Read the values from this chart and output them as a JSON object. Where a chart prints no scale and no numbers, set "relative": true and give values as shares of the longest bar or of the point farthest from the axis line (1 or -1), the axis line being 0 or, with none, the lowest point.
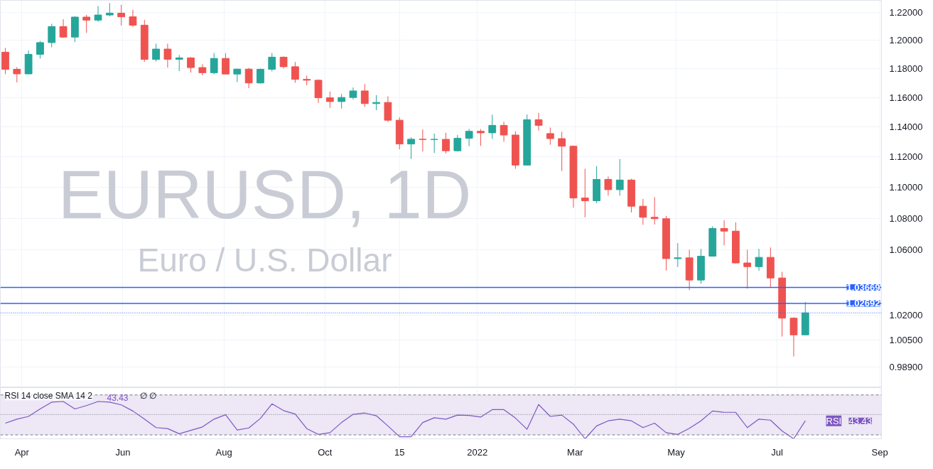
{
  "chart_data": [
    {
      "type": "candlestick",
      "title": "EURUSD, 1D",
      "subtitle": "Euro / U.S. Dollar",
      "x": [
        "2021-03-22",
        "2021-03-29",
        "2021-04-05",
        "2021-04-12",
        "2021-04-19",
        "2021-04-26",
        "2021-05-03",
        "2021-05-10",
        "2021-05-17",
        "2021-05-24",
        "2021-05-31",
        "2021-06-07",
        "2021-06-14",
        "2021-06-21",
        "2021-06-28",
        "2021-07-05",
        "2021-07-12",
        "2021-07-19",
        "2021-07-26",
        "2021-08-02",
        "2021-08-09",
        "2021-08-16",
        "2021-08-23",
        "2021-08-30",
        "2021-09-06",
        "2021-09-13",
        "2021-09-20",
        "2021-09-27",
        "2021-10-04",
        "2021-10-11",
        "2021-10-18",
        "2021-10-25",
        "2021-11-01",
        "2021-11-08",
        "2021-11-15",
        "2021-11-22",
        "2021-11-29",
        "2021-12-06",
        "2021-12-13",
        "2021-12-20",
        "2021-12-27",
        "2022-01-03",
        "2022-01-10",
        "2022-01-17",
        "2022-01-24",
        "2022-01-31",
        "2022-02-07",
        "2022-02-14",
        "2022-02-21",
        "2022-02-28",
        "2022-03-07",
        "2022-03-14",
        "2022-03-21",
        "2022-03-28",
        "2022-04-04",
        "2022-04-11",
        "2022-04-18",
        "2022-04-25",
        "2022-05-02",
        "2022-05-09",
        "2022-05-16",
        "2022-05-23",
        "2022-05-30",
        "2022-06-06",
        "2022-06-13",
        "2022-06-20",
        "2022-06-27",
        "2022-07-04",
        "2022-07-11",
        "2022-07-18"
      ],
      "ohlc": [
        [
          1.1915,
          1.1945,
          1.1762,
          1.1795
        ],
        [
          1.1795,
          1.181,
          1.1704,
          1.1763
        ],
        [
          1.1763,
          1.1927,
          1.176,
          1.19
        ],
        [
          1.19,
          1.1994,
          1.187,
          1.1983
        ],
        [
          1.1983,
          1.2117,
          1.195,
          1.2097
        ],
        [
          1.2097,
          1.215,
          1.2016,
          1.2022
        ],
        [
          1.2022,
          1.2171,
          1.1986,
          1.2165
        ],
        [
          1.2165,
          1.2181,
          1.2052,
          1.2143
        ],
        [
          1.2143,
          1.2245,
          1.2131,
          1.218
        ],
        [
          1.218,
          1.2266,
          1.217,
          1.2193
        ],
        [
          1.2193,
          1.2254,
          1.2104,
          1.2167
        ],
        [
          1.2167,
          1.2218,
          1.2094,
          1.2107
        ],
        [
          1.2107,
          1.2145,
          1.1847,
          1.1864
        ],
        [
          1.1864,
          1.1975,
          1.185,
          1.1937
        ],
        [
          1.1937,
          1.1975,
          1.1807,
          1.1865
        ],
        [
          1.1865,
          1.1895,
          1.1782,
          1.1875
        ],
        [
          1.1875,
          1.188,
          1.1772,
          1.1807
        ],
        [
          1.1807,
          1.183,
          1.1752,
          1.1771
        ],
        [
          1.1771,
          1.1909,
          1.176,
          1.1871
        ],
        [
          1.1871,
          1.1908,
          1.176,
          1.1762
        ],
        [
          1.1762,
          1.18,
          1.1706,
          1.1796
        ],
        [
          1.1796,
          1.1805,
          1.1664,
          1.17
        ],
        [
          1.17,
          1.18,
          1.1696,
          1.1795
        ],
        [
          1.1795,
          1.1909,
          1.178,
          1.188
        ],
        [
          1.188,
          1.1885,
          1.1801,
          1.1813
        ],
        [
          1.1813,
          1.1846,
          1.1701,
          1.1725
        ],
        [
          1.1725,
          1.175,
          1.1684,
          1.1719
        ],
        [
          1.1719,
          1.1725,
          1.1563,
          1.1598
        ],
        [
          1.1598,
          1.164,
          1.1529,
          1.1572
        ],
        [
          1.1572,
          1.1624,
          1.1524,
          1.16
        ],
        [
          1.16,
          1.1669,
          1.1586,
          1.1645
        ],
        [
          1.1645,
          1.1692,
          1.1535,
          1.1558
        ],
        [
          1.1558,
          1.1616,
          1.1513,
          1.1566
        ],
        [
          1.1566,
          1.1607,
          1.1433,
          1.1445
        ],
        [
          1.1445,
          1.1464,
          1.125,
          1.1285
        ],
        [
          1.1285,
          1.133,
          1.1186,
          1.1317
        ],
        [
          1.1317,
          1.1383,
          1.1235,
          1.1315
        ],
        [
          1.1315,
          1.1355,
          1.1225,
          1.1316
        ],
        [
          1.1316,
          1.136,
          1.1222,
          1.124
        ],
        [
          1.124,
          1.1345,
          1.1235,
          1.1323
        ],
        [
          1.1323,
          1.1386,
          1.127,
          1.137
        ],
        [
          1.137,
          1.1385,
          1.1272,
          1.136
        ],
        [
          1.136,
          1.1482,
          1.132,
          1.141
        ],
        [
          1.141,
          1.1434,
          1.13,
          1.1345
        ],
        [
          1.1345,
          1.137,
          1.1121,
          1.1145
        ],
        [
          1.1145,
          1.1483,
          1.1145,
          1.1448
        ],
        [
          1.1448,
          1.1495,
          1.1375,
          1.141
        ],
        [
          1.1355,
          1.1395,
          1.128,
          1.1321
        ],
        [
          1.1321,
          1.1367,
          1.1106,
          1.127
        ],
        [
          1.127,
          1.1275,
          1.0867,
          1.093
        ],
        [
          1.093,
          1.1121,
          1.0806,
          1.0912
        ],
        [
          1.0912,
          1.1138,
          1.0897,
          1.1051
        ],
        [
          1.1051,
          1.107,
          1.0945,
          1.0984
        ],
        [
          1.0984,
          1.1185,
          1.0945,
          1.1047
        ],
        [
          1.1047,
          1.1055,
          1.0837,
          1.0877
        ],
        [
          1.0877,
          1.0924,
          1.0758,
          1.0806
        ],
        [
          1.0806,
          1.0936,
          1.076,
          1.0797
        ],
        [
          1.0797,
          1.0815,
          1.0471,
          1.0545
        ],
        [
          1.0545,
          1.0642,
          1.0493,
          1.055
        ],
        [
          1.055,
          1.06,
          1.035,
          1.0412
        ],
        [
          1.0412,
          1.0606,
          1.039,
          1.056
        ],
        [
          1.056,
          1.0749,
          1.056,
          1.0735
        ],
        [
          1.0735,
          1.0787,
          1.0628,
          1.0718
        ],
        [
          1.0718,
          1.0774,
          1.0515,
          1.0518
        ],
        [
          1.0518,
          1.06,
          1.0359,
          1.0495
        ],
        [
          1.0495,
          1.0606,
          1.047,
          1.0553
        ],
        [
          1.0553,
          1.0615,
          1.0365,
          1.0425
        ],
        [
          1.0425,
          1.0463,
          1.007,
          1.018
        ],
        [
          1.018,
          1.0185,
          0.9952,
          1.008
        ],
        [
          1.008,
          1.0278,
          1.0079,
          1.0212
        ]
      ],
      "colors": [
        "#ef5350",
        "#ef5350",
        "#26a69a",
        "#26a69a",
        "#26a69a",
        "#ef5350",
        "#26a69a",
        "#ef5350",
        "#26a69a",
        "#26a69a",
        "#ef5350",
        "#ef5350",
        "#ef5350",
        "#26a69a",
        "#ef5350",
        "#26a69a",
        "#ef5350",
        "#ef5350",
        "#26a69a",
        "#ef5350",
        "#26a69a",
        "#ef5350",
        "#26a69a",
        "#26a69a",
        "#ef5350",
        "#ef5350",
        "#ef5350",
        "#ef5350",
        "#ef5350",
        "#26a69a",
        "#26a69a",
        "#ef5350",
        "#26a69a",
        "#ef5350",
        "#ef5350",
        "#26a69a",
        "#ef5350",
        "#26a69a",
        "#ef5350",
        "#26a69a",
        "#26a69a",
        "#ef5350",
        "#26a69a",
        "#ef5350",
        "#ef5350",
        "#26a69a",
        "#ef5350",
        "#ef5350",
        "#ef5350",
        "#ef5350",
        "#ef5350",
        "#26a69a",
        "#ef5350",
        "#26a69a",
        "#ef5350",
        "#ef5350",
        "#ef5350",
        "#ef5350",
        "#26a69a",
        "#ef5350",
        "#26a69a",
        "#26a69a",
        "#ef5350",
        "#ef5350",
        "#ef5350",
        "#26a69a",
        "#ef5350",
        "#ef5350",
        "#ef5350",
        "#26a69a"
      ],
      "xlim": [
        "2021-03-19",
        "2022-09-02"
      ],
      "xticks": [
        {
          "value": "2021-04-01",
          "label": null
        },
        {
          "value": "2021-06-01",
          "label": null
        },
        {
          "value": "2021-08-01",
          "label": null
        },
        {
          "value": "2021-10-01",
          "label": null
        },
        {
          "value": "2021-11-15",
          "label": null
        },
        {
          "value": "2022-01-01",
          "label": null
        },
        {
          "value": "2022-03-01",
          "label": null
        },
        {
          "value": "2022-05-01",
          "label": null
        },
        {
          "value": "2022-07-01",
          "label": null
        },
        {
          "value": "2022-09-01",
          "label": null
        }
      ],
      "ylim": [
        0.977,
        1.2286
      ],
      "log": "y",
      "yticks": [
        {
          "value": 0.989,
          "label": "0.98900"
        },
        {
          "value": 1.005,
          "label": "1.00500"
        },
        {
          "value": 1.02,
          "label": "1.02000"
        },
        {
          "value": 1.06,
          "label": "1.06000"
        },
        {
          "value": 1.08,
          "label": "1.08000"
        },
        {
          "value": 1.1,
          "label": "1.10000"
        },
        {
          "value": 1.12,
          "label": "1.12000"
        },
        {
          "value": 1.14,
          "label": "1.14000"
        },
        {
          "value": 1.16,
          "label": "1.16000"
        },
        {
          "value": 1.18,
          "label": "1.18000"
        },
        {
          "value": 1.2,
          "label": "1.20000"
        },
        {
          "value": 1.22,
          "label": "1.22000"
        }
      ],
      "ref_lines": [
        {
          "axis": "y",
          "value": 1.03669,
          "label": "1.03669",
          "color": "#2962ff",
          "line_style": "solid"
        },
        {
          "axis": "y",
          "value": 1.02692,
          "label": "1.02692",
          "color": "#2962ff",
          "line_style": "solid"
        },
        {
          "axis": "y",
          "value": 1.0212,
          "label": null,
          "color": "#2962ff",
          "line_style": "dotted"
        }
      ],
      "grid": true,
      "tick_labels": "y"
    },
    {
      "type": "line",
      "title": "RSI 14 close SMA 14 2",
      "annotations": [
        "43.43",
        "∅ ∅",
        "RSI",
        "43.43"
      ],
      "x": [
        "2021-03-22",
        "2021-03-29",
        "2021-04-05",
        "2021-04-12",
        "2021-04-19",
        "2021-04-26",
        "2021-05-03",
        "2021-05-10",
        "2021-05-17",
        "2021-05-24",
        "2021-05-31",
        "2021-06-07",
        "2021-06-14",
        "2021-06-21",
        "2021-06-28",
        "2021-07-05",
        "2021-07-12",
        "2021-07-19",
        "2021-07-26",
        "2021-08-02",
        "2021-08-09",
        "2021-08-16",
        "2021-08-23",
        "2021-08-30",
        "2021-09-06",
        "2021-09-13",
        "2021-09-20",
        "2021-09-27",
        "2021-10-04",
        "2021-10-11",
        "2021-10-18",
        "2021-10-25",
        "2021-11-01",
        "2021-11-08",
        "2021-11-15",
        "2021-11-22",
        "2021-11-29",
        "2021-12-06",
        "2021-12-13",
        "2021-12-20",
        "2021-12-27",
        "2022-01-03",
        "2022-01-10",
        "2022-01-17",
        "2022-01-24",
        "2022-01-31",
        "2022-02-07",
        "2022-02-14",
        "2022-02-21",
        "2022-02-28",
        "2022-03-07",
        "2022-03-14",
        "2022-03-21",
        "2022-03-28",
        "2022-04-04",
        "2022-04-11",
        "2022-04-18",
        "2022-04-25",
        "2022-05-02",
        "2022-05-09",
        "2022-05-16",
        "2022-05-23",
        "2022-05-30",
        "2022-06-06",
        "2022-06-13",
        "2022-06-20",
        "2022-06-27",
        "2022-07-04",
        "2022-07-11",
        "2022-07-18"
      ],
      "series": [
        {
          "color": "#7e57c2",
          "values": [
            0.418,
            0.527,
            0.6,
            0.8,
            0.982,
            1,
            0.8,
            0.891,
            1,
            0.982,
            0.909,
            0.745,
            0.527,
            0.3,
            0.273,
            0.136,
            0.227,
            0.318,
            0.527,
            0.645,
            0.236,
            0.291,
            0.545,
            0.936,
            0.755,
            0.664,
            0.273,
            0.118,
            0.164,
            0.436,
            0.655,
            0.691,
            0.618,
            0.345,
            0.055,
            0.055,
            0.436,
            0.564,
            0.527,
            0.636,
            0.627,
            0.582,
            0.782,
            0.782,
            0.555,
            0.255,
            0.918,
            0.6,
            0.636,
            0.391,
            0,
            0.345,
            0.482,
            0.527,
            0.482,
            0.3,
            0.418,
            0.164,
            0.118,
            0.282,
            0.482,
            0.745,
            0.709,
            0.709,
            0.3,
            0.527,
            0.5,
            0.209,
            0,
            0.482
          ]
        }
      ],
      "relative": true,
      "bands": [
        {
          "axis": "y",
          "from": 0.105,
          "to": 1.175,
          "color": "#ede7f6"
        }
      ],
      "ref_lines": [
        {
          "axis": "y",
          "value": 1.175,
          "label": null,
          "color": "#787b86",
          "line_style": "dashed"
        },
        {
          "axis": "y",
          "value": 0.651,
          "label": null,
          "color": "#787b86",
          "line_style": "dotted"
        },
        {
          "axis": "y",
          "value": 0.105,
          "label": null,
          "color": "#787b86",
          "line_style": "dashed"
        }
      ],
      "xlim": [
        "2021-03-19",
        "2022-09-02"
      ],
      "xticks": [
        {
          "value": "2021-04-01",
          "label": "Apr"
        },
        {
          "value": "2021-06-01",
          "label": "Jun"
        },
        {
          "value": "2021-08-01",
          "label": "Aug"
        },
        {
          "value": "2021-10-01",
          "label": "Oct"
        },
        {
          "value": "2021-11-15",
          "label": "15"
        },
        {
          "value": "2022-01-01",
          "label": "2022"
        },
        {
          "value": "2022-03-01",
          "label": "Mar"
        },
        {
          "value": "2022-05-01",
          "label": "May"
        },
        {
          "value": "2022-07-01",
          "label": "Jul"
        },
        {
          "value": "2022-09-01",
          "label": "Sep"
        }
      ],
      "grid": "x",
      "tick_labels": "x"
    }
  ]
}
